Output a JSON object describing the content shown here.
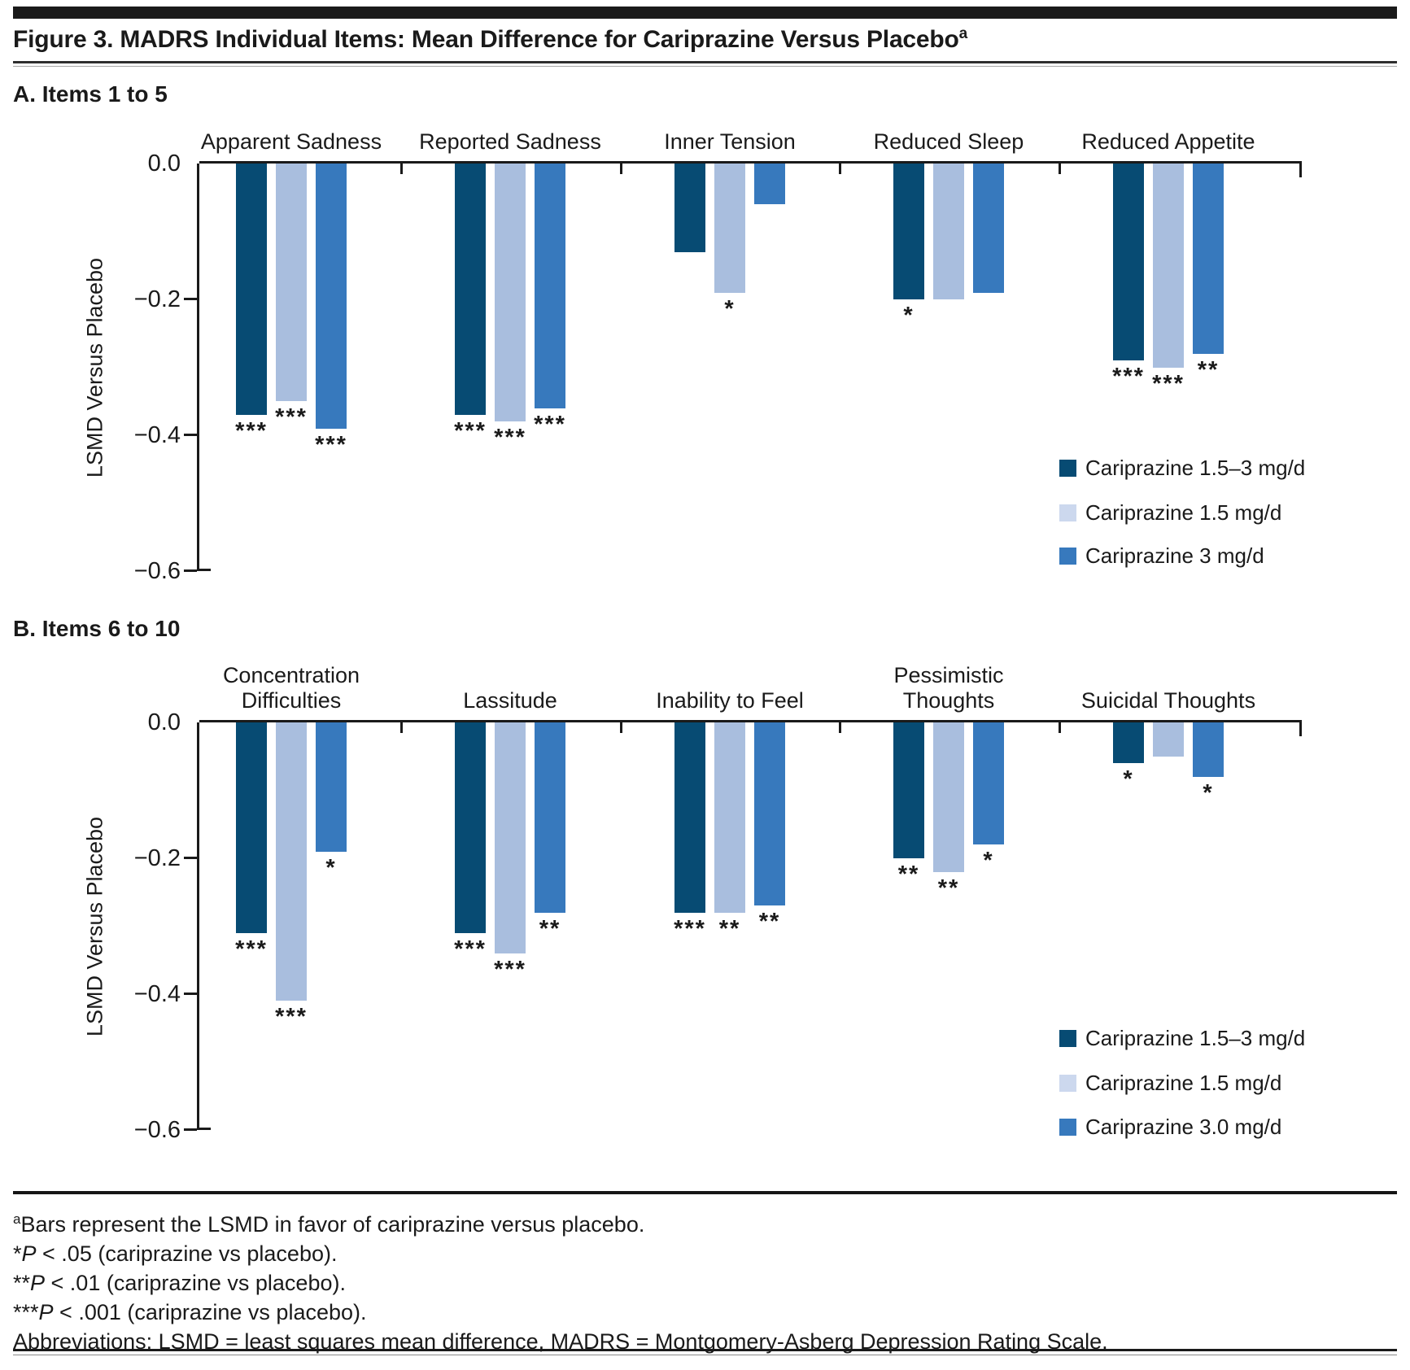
{
  "title": {
    "text": "Figure 3. MADRS Individual Items: Mean Difference for Cariprazine Versus Placebo",
    "superscript": "a"
  },
  "colors": {
    "bar_dark": "#074b73",
    "bar_light": "#a9bede",
    "bar_medium": "#3779bd",
    "legend_light_swatch": "#ccd8ee",
    "ink": "#1a1a1a"
  },
  "chart_data": [
    {
      "type": "bar",
      "panel_label": "A. Items 1 to 5",
      "ylabel": "LSMD Versus Placebo",
      "ylim": [
        0.0,
        -0.6
      ],
      "yticks": [
        0.0,
        -0.2,
        -0.4,
        -0.6
      ],
      "ytick_labels": [
        "0.0",
        "−0.2",
        "−0.4",
        "−0.6"
      ],
      "grid": false,
      "legend_position": "bottom-right",
      "categories": [
        "Apparent Sadness",
        "Reported Sadness",
        "Inner Tension",
        "Reduced Sleep",
        "Reduced Appetite"
      ],
      "category_label_lines": [
        [
          "Apparent Sadness"
        ],
        [
          "Reported Sadness"
        ],
        [
          "Inner Tension"
        ],
        [
          "Reduced Sleep"
        ],
        [
          "Reduced Appetite"
        ]
      ],
      "series": [
        {
          "name": "Cariprazine 1.5–3 mg/d",
          "color": "#074b73",
          "values": [
            -0.37,
            -0.37,
            -0.13,
            -0.2,
            -0.29
          ],
          "sig": [
            "***",
            "***",
            "",
            "*",
            "***"
          ]
        },
        {
          "name": "Cariprazine 1.5 mg/d",
          "color": "#a9bede",
          "values": [
            -0.35,
            -0.38,
            -0.19,
            -0.2,
            -0.3
          ],
          "sig": [
            "***",
            "***",
            "*",
            "",
            "***"
          ]
        },
        {
          "name": "Cariprazine 3 mg/d",
          "color": "#3779bd",
          "values": [
            -0.39,
            -0.36,
            -0.06,
            -0.19,
            -0.28
          ],
          "sig": [
            "***",
            "***",
            "",
            "",
            "**"
          ]
        }
      ],
      "legend": {
        "items": [
          {
            "label": "Cariprazine 1.5–3 mg/d",
            "color": "#074b73"
          },
          {
            "label": "Cariprazine 1.5 mg/d",
            "color": "#ccd8ee"
          },
          {
            "label": "Cariprazine 3 mg/d",
            "color": "#3779bd"
          }
        ]
      }
    },
    {
      "type": "bar",
      "panel_label": "B. Items 6 to 10",
      "ylabel": "LSMD Versus Placebo",
      "ylim": [
        0.0,
        -0.6
      ],
      "yticks": [
        0.0,
        -0.2,
        -0.4,
        -0.6
      ],
      "ytick_labels": [
        "0.0",
        "−0.2",
        "−0.4",
        "−0.6"
      ],
      "grid": false,
      "legend_position": "bottom-right",
      "categories": [
        "Concentration Difficulties",
        "Lassitude",
        "Inability to Feel",
        "Pessimistic Thoughts",
        "Suicidal Thoughts"
      ],
      "category_label_lines": [
        [
          "Concentration",
          "Difficulties"
        ],
        [
          "Lassitude"
        ],
        [
          "Inability to Feel"
        ],
        [
          "Pessimistic",
          "Thoughts"
        ],
        [
          "Suicidal Thoughts"
        ]
      ],
      "series": [
        {
          "name": "Cariprazine 1.5–3 mg/d",
          "color": "#074b73",
          "values": [
            -0.31,
            -0.31,
            -0.28,
            -0.2,
            -0.06
          ],
          "sig": [
            "***",
            "***",
            "***",
            "**",
            "*"
          ]
        },
        {
          "name": "Cariprazine 1.5 mg/d",
          "color": "#a9bede",
          "values": [
            -0.41,
            -0.34,
            -0.28,
            -0.22,
            -0.05
          ],
          "sig": [
            "***",
            "***",
            "**",
            "**",
            ""
          ]
        },
        {
          "name": "Cariprazine 3.0 mg/d",
          "color": "#3779bd",
          "values": [
            -0.19,
            -0.28,
            -0.27,
            -0.18,
            -0.08
          ],
          "sig": [
            "*",
            "**",
            "**",
            "*",
            "*"
          ]
        }
      ],
      "legend": {
        "items": [
          {
            "label": "Cariprazine 1.5–3 mg/d",
            "color": "#074b73"
          },
          {
            "label": "Cariprazine 1.5 mg/d",
            "color": "#ccd8ee"
          },
          {
            "label": "Cariprazine 3.0 mg/d",
            "color": "#3779bd"
          }
        ]
      }
    }
  ],
  "footnotes": {
    "lines": [
      [
        {
          "t": "a",
          "style": "sup"
        },
        {
          "t": "Bars represent the LSMD in favor of cariprazine versus placebo.",
          "style": ""
        }
      ],
      [
        {
          "t": "*",
          "style": ""
        },
        {
          "t": "P",
          "style": "i"
        },
        {
          "t": " < .05 (cariprazine vs placebo).",
          "style": ""
        }
      ],
      [
        {
          "t": "**",
          "style": ""
        },
        {
          "t": "P",
          "style": "i"
        },
        {
          "t": " < .01 (cariprazine vs placebo).",
          "style": ""
        }
      ],
      [
        {
          "t": "***",
          "style": ""
        },
        {
          "t": "P",
          "style": "i"
        },
        {
          "t": " < .001 (cariprazine vs placebo).",
          "style": ""
        }
      ],
      [
        {
          "t": "Abbreviations: LSMD = least squares mean difference, MADRS = Montgomery-Asberg Depression Rating Scale.",
          "style": ""
        }
      ]
    ]
  }
}
